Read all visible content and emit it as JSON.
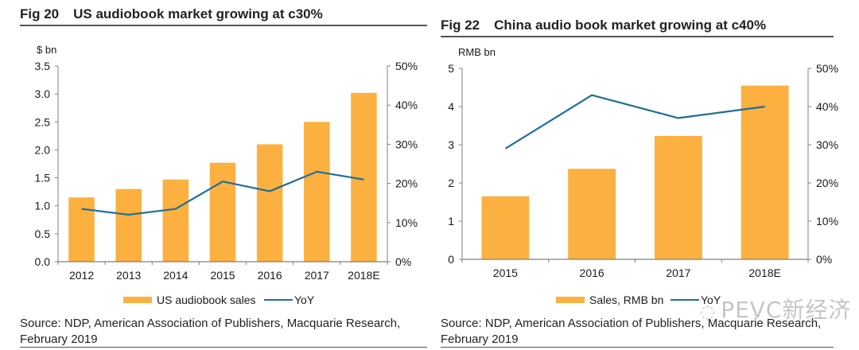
{
  "colors": {
    "bar": "#FBB040",
    "line": "#1F6E9C",
    "axis": "#808080"
  },
  "left": {
    "fig_num": "Fig 20",
    "title": "US audiobook market growing at c30%",
    "source_line1": "Source: NDP, American Association of Publishers, Macquarie Research,",
    "source_line2": "February 2019"
  },
  "right": {
    "fig_num": "Fig 22",
    "title": "China audio book market growing at c40%",
    "source_line1": "Source: NDP, American Association of Publishers, Macquarie Research,",
    "source_line2": "February 2019"
  },
  "watermark": "PEVC新经济",
  "chart_data": [
    {
      "type": "bar",
      "title": "US audiobook market growing at c30%",
      "categories": [
        "2012",
        "2013",
        "2014",
        "2015",
        "2016",
        "2017",
        "2018E"
      ],
      "series": [
        {
          "name": "US audiobook sales",
          "type": "bar",
          "axis": "left",
          "values": [
            1.15,
            1.3,
            1.47,
            1.77,
            2.1,
            2.5,
            3.02
          ]
        },
        {
          "name": "YoY",
          "type": "line",
          "axis": "right",
          "values": [
            13.5,
            12.0,
            13.5,
            20.5,
            18.0,
            23.0,
            21.0
          ]
        }
      ],
      "ylabel": "$ bn",
      "ylim": [
        0,
        3.5
      ],
      "yticks": [
        "0.0",
        "0.5",
        "1.0",
        "1.5",
        "2.0",
        "2.5",
        "3.0",
        "3.5"
      ],
      "y2lim": [
        0,
        50
      ],
      "y2ticks": [
        "0%",
        "10%",
        "20%",
        "30%",
        "40%",
        "50%"
      ],
      "legend": [
        "US audiobook sales",
        "YoY"
      ],
      "legend_position": "bottom",
      "grid": false
    },
    {
      "type": "bar",
      "title": "China audio book market growing at c40%",
      "categories": [
        "2015",
        "2016",
        "2017",
        "2018E"
      ],
      "series": [
        {
          "name": "Sales, RMB bn",
          "type": "bar",
          "axis": "left",
          "values": [
            1.65,
            2.37,
            3.23,
            4.55
          ]
        },
        {
          "name": "YoY",
          "type": "line",
          "axis": "right",
          "values": [
            29.0,
            43.0,
            37.0,
            40.0
          ]
        }
      ],
      "ylabel": "RMB bn",
      "ylim": [
        0,
        5
      ],
      "yticks": [
        "0",
        "1",
        "2",
        "3",
        "4",
        "5"
      ],
      "y2lim": [
        0,
        50
      ],
      "y2ticks": [
        "0%",
        "10%",
        "20%",
        "30%",
        "40%",
        "50%"
      ],
      "legend": [
        "Sales, RMB bn",
        "YoY"
      ],
      "legend_position": "bottom",
      "grid": false
    }
  ]
}
